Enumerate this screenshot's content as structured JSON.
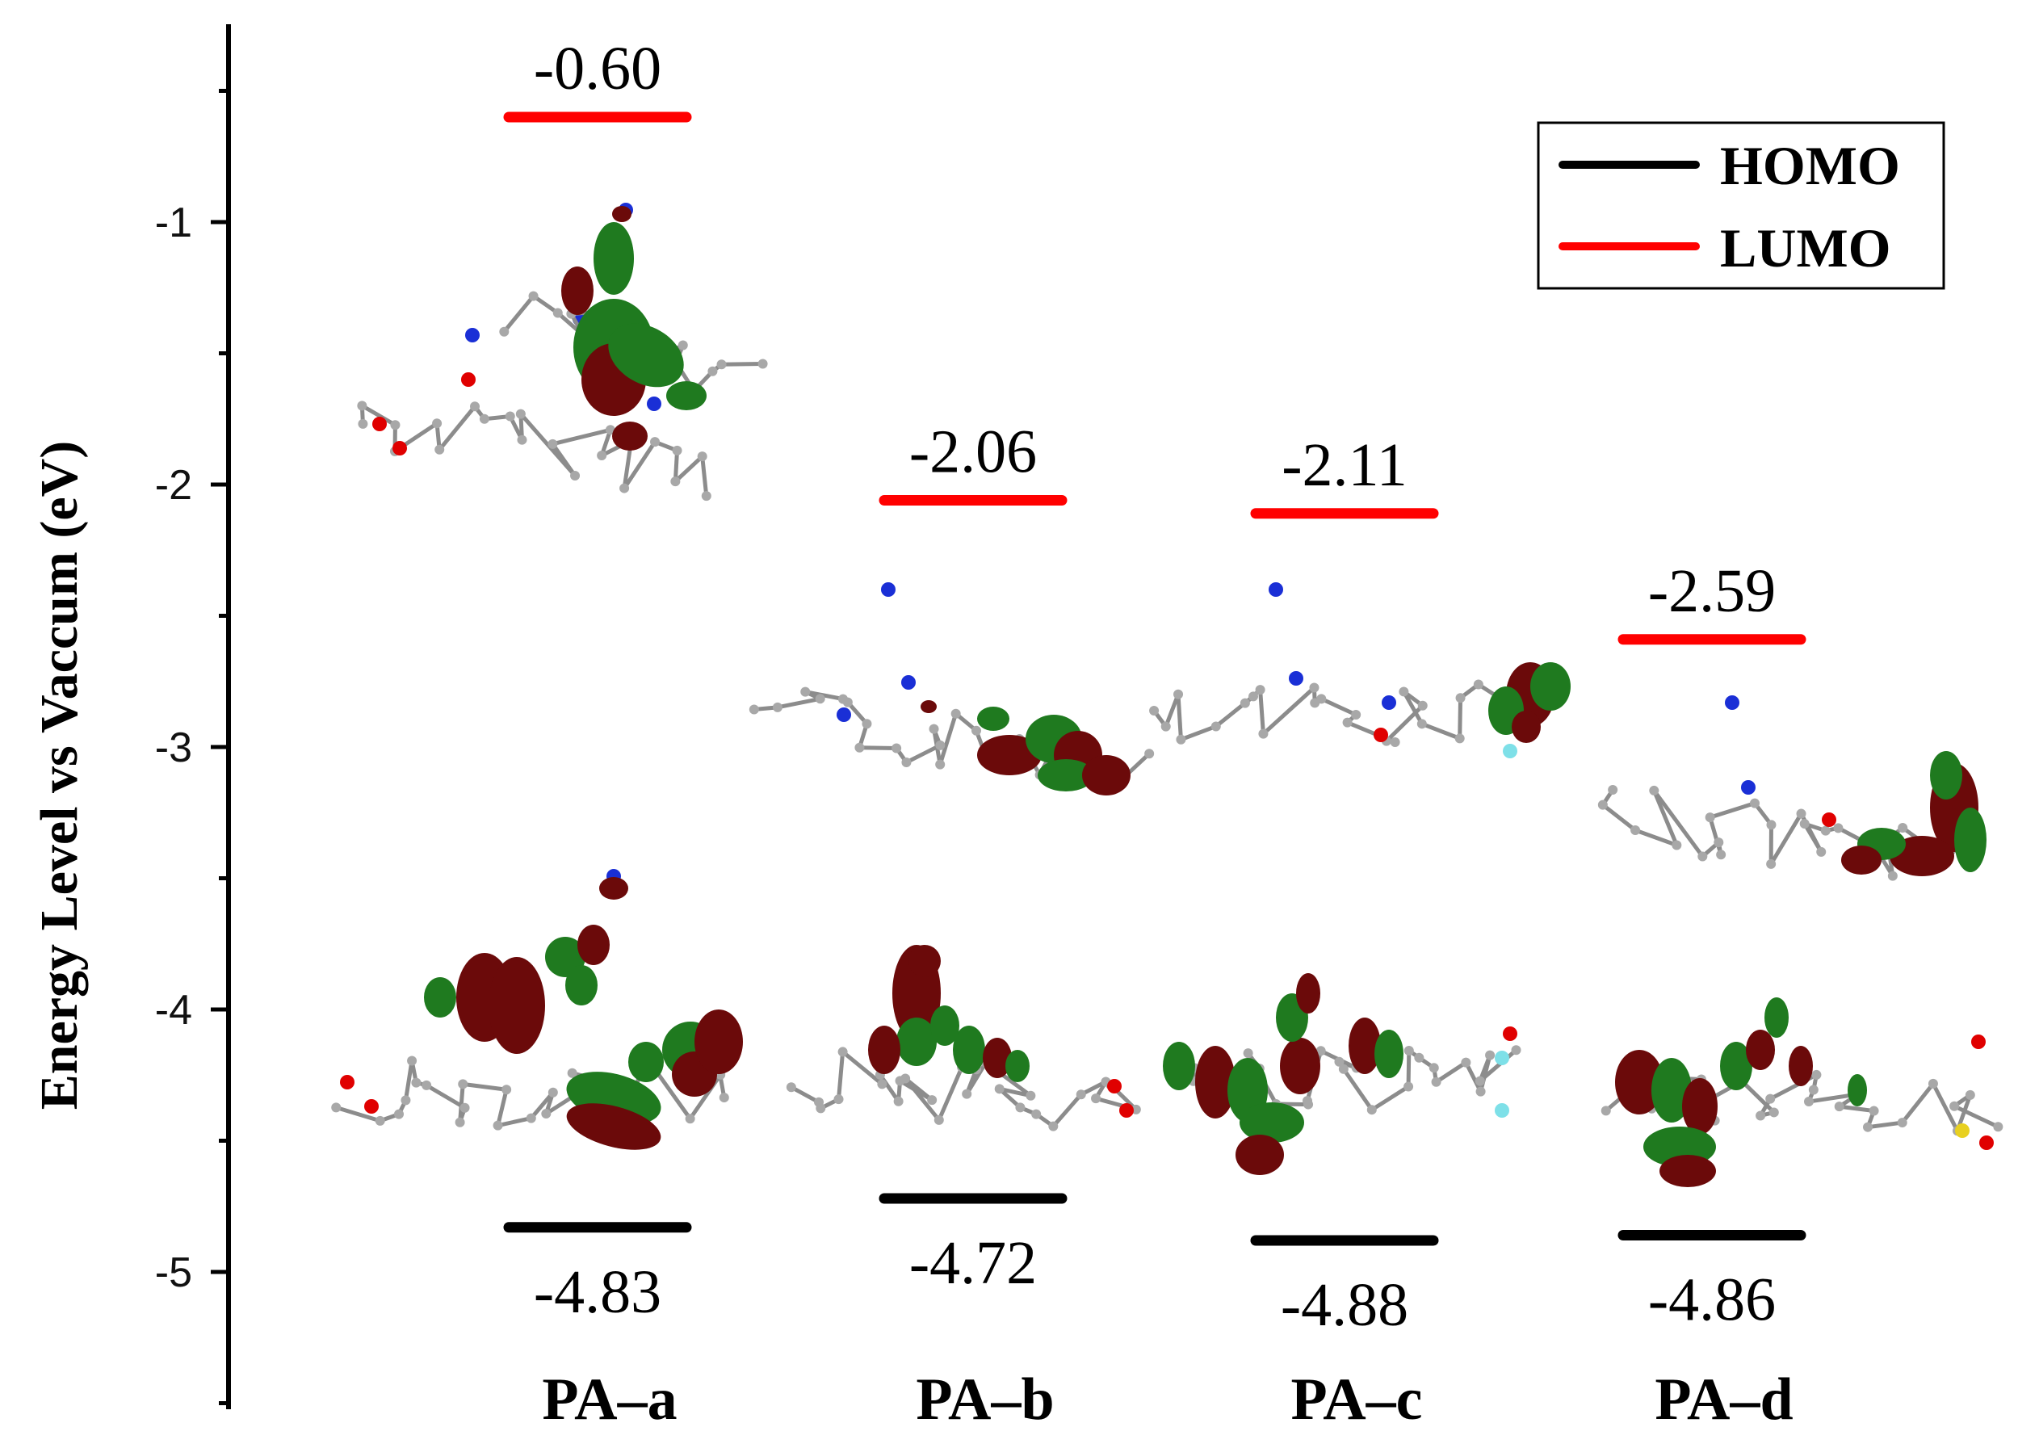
{
  "chart_data": {
    "type": "energy-level-diagram",
    "title": "",
    "ylabel": "Energy Level vs Vaccum (eV)",
    "ylim": [
      -5.5,
      -0.25
    ],
    "yticks": [
      -1,
      -2,
      -3,
      -4,
      -5
    ],
    "ytick_labels": [
      "-1",
      "-2",
      "-3",
      "-4",
      "-5"
    ],
    "categories": [
      "PA–a",
      "PA–b",
      "PA–c",
      "PA–d"
    ],
    "series": [
      {
        "name": "HOMO",
        "color": "#000000",
        "values": [
          -4.83,
          -4.72,
          -4.88,
          -4.86
        ],
        "labels": [
          "-4.83",
          "-4.72",
          "-4.88",
          "-4.86"
        ]
      },
      {
        "name": "LUMO",
        "color": "#ff0000",
        "values": [
          -0.6,
          -2.06,
          -2.11,
          -2.59
        ],
        "labels": [
          "-0.60",
          "-2.06",
          "-2.11",
          "-2.59"
        ]
      }
    ],
    "legend": {
      "position": "top-right",
      "entries": [
        "HOMO",
        "LUMO"
      ]
    },
    "orbital_colors": {
      "positive": "#6b0a0a",
      "negative": "#1f7a1f",
      "carbon": "#a8a8a8",
      "nitrogen": "#1a2fd6",
      "oxygen": "#e00000",
      "fluorine": "#7ee0e8",
      "sulfur": "#e8d020"
    }
  }
}
